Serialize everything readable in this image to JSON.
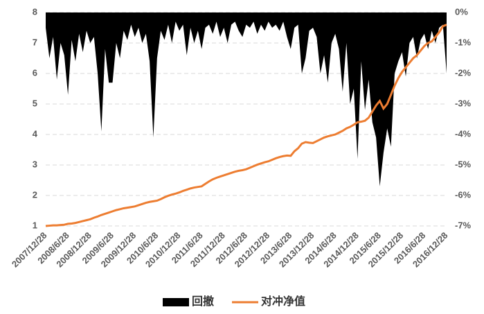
{
  "chart_data": {
    "type": "line",
    "categories": [
      "2007/12/28",
      null,
      null,
      null,
      null,
      null,
      "2008/6/28",
      null,
      null,
      null,
      null,
      null,
      "2008/12/28",
      null,
      null,
      null,
      null,
      null,
      "2009/6/28",
      null,
      null,
      null,
      null,
      null,
      "2009/12/28",
      null,
      null,
      null,
      null,
      null,
      "2010/6/28",
      null,
      null,
      null,
      null,
      null,
      "2010/12/28",
      null,
      null,
      null,
      null,
      null,
      "2011/6/28",
      null,
      null,
      null,
      null,
      null,
      "2011/12/28",
      null,
      null,
      null,
      null,
      null,
      "2012/6/28",
      null,
      null,
      null,
      null,
      null,
      "2012/12/28",
      null,
      null,
      null,
      null,
      null,
      "2013/6/28",
      null,
      null,
      null,
      null,
      null,
      "2013/12/28",
      null,
      null,
      null,
      null,
      null,
      "2014/6/28",
      null,
      null,
      null,
      null,
      null,
      "2014/12/28",
      null,
      null,
      null,
      null,
      null,
      "2015/6/28",
      null,
      null,
      null,
      null,
      null,
      "2015/12/28",
      null,
      null,
      null,
      null,
      null,
      "2016/6/28",
      null,
      null,
      null,
      null,
      null,
      "2016/12/28"
    ],
    "series": [
      {
        "name": "回撤",
        "type": "area",
        "axis": "y2",
        "color": "#000000",
        "values": [
          -0.5,
          -1.5,
          -0.8,
          -2.2,
          -1.0,
          -1.4,
          -2.7,
          -0.9,
          -1.6,
          -0.7,
          -1.3,
          -0.6,
          -1.0,
          -0.8,
          -2.0,
          -3.9,
          -1.2,
          -2.3,
          -2.3,
          -1.0,
          -1.5,
          -0.6,
          -0.9,
          -0.4,
          -0.8,
          -0.5,
          -1.0,
          -0.7,
          -1.6,
          -4.1,
          -1.5,
          -0.6,
          -0.9,
          -0.4,
          -1.0,
          -0.3,
          -0.6,
          -0.4,
          -1.4,
          -0.5,
          -1.0,
          -0.6,
          -1.2,
          -0.5,
          -0.4,
          -0.7,
          -0.3,
          -0.8,
          -0.5,
          -1.0,
          -0.4,
          -0.3,
          -0.6,
          -0.8,
          -0.4,
          -0.5,
          -0.3,
          -0.7,
          -0.4,
          -0.6,
          -0.3,
          -0.5,
          -0.4,
          -0.6,
          -0.3,
          -0.8,
          -1.2,
          -0.5,
          -0.4,
          -2.0,
          -1.5,
          -0.6,
          -0.5,
          -0.8,
          -2.0,
          -1.4,
          -2.3,
          -1.0,
          -0.7,
          -1.2,
          -2.6,
          -1.0,
          -3.0,
          -2.5,
          -4.8,
          -1.6,
          -3.2,
          -2.2,
          -3.6,
          -4.1,
          -5.7,
          -4.6,
          -3.8,
          -4.4,
          -2.0,
          -1.6,
          -1.3,
          -2.1,
          -1.0,
          -0.8,
          -1.5,
          -0.9,
          -0.7,
          -1.2,
          -0.6,
          -1.0,
          -0.5,
          -0.4,
          -2.0
        ]
      },
      {
        "name": "对冲净值",
        "type": "line",
        "color": "#ed7d31",
        "values": [
          1.0,
          1.01,
          1.02,
          1.02,
          1.03,
          1.04,
          1.07,
          1.08,
          1.1,
          1.13,
          1.16,
          1.19,
          1.22,
          1.27,
          1.31,
          1.36,
          1.4,
          1.44,
          1.48,
          1.52,
          1.55,
          1.58,
          1.6,
          1.62,
          1.64,
          1.68,
          1.72,
          1.76,
          1.79,
          1.81,
          1.83,
          1.88,
          1.94,
          1.99,
          2.03,
          2.06,
          2.1,
          2.15,
          2.19,
          2.23,
          2.26,
          2.28,
          2.3,
          2.38,
          2.46,
          2.53,
          2.58,
          2.62,
          2.66,
          2.7,
          2.74,
          2.78,
          2.81,
          2.83,
          2.86,
          2.91,
          2.96,
          3.01,
          3.05,
          3.09,
          3.12,
          3.17,
          3.22,
          3.26,
          3.29,
          3.31,
          3.3,
          3.45,
          3.55,
          3.7,
          3.75,
          3.73,
          3.72,
          3.78,
          3.84,
          3.9,
          3.94,
          3.97,
          4.0,
          4.06,
          4.12,
          4.2,
          4.25,
          4.32,
          4.4,
          4.42,
          4.45,
          4.55,
          4.75,
          4.95,
          5.1,
          4.85,
          5.0,
          5.3,
          5.6,
          5.85,
          6.05,
          6.2,
          6.35,
          6.5,
          6.6,
          6.75,
          6.9,
          7.0,
          7.05,
          7.2,
          7.35,
          7.55,
          7.6
        ]
      }
    ],
    "ylim": [
      1,
      8
    ],
    "yticks": [
      1,
      2,
      3,
      4,
      5,
      6,
      7,
      8
    ],
    "y2lim": [
      -7,
      0
    ],
    "y2ticks": [
      {
        "value": 0,
        "label": "0%"
      },
      {
        "value": -1,
        "label": "-1%"
      },
      {
        "value": -2,
        "label": "-2%"
      },
      {
        "value": -3,
        "label": "-3%"
      },
      {
        "value": -4,
        "label": "-4%"
      },
      {
        "value": -5,
        "label": "-5%"
      },
      {
        "value": -6,
        "label": "-6%"
      },
      {
        "value": -7,
        "label": "-7%"
      }
    ],
    "grid": true,
    "legend": "bottom"
  }
}
